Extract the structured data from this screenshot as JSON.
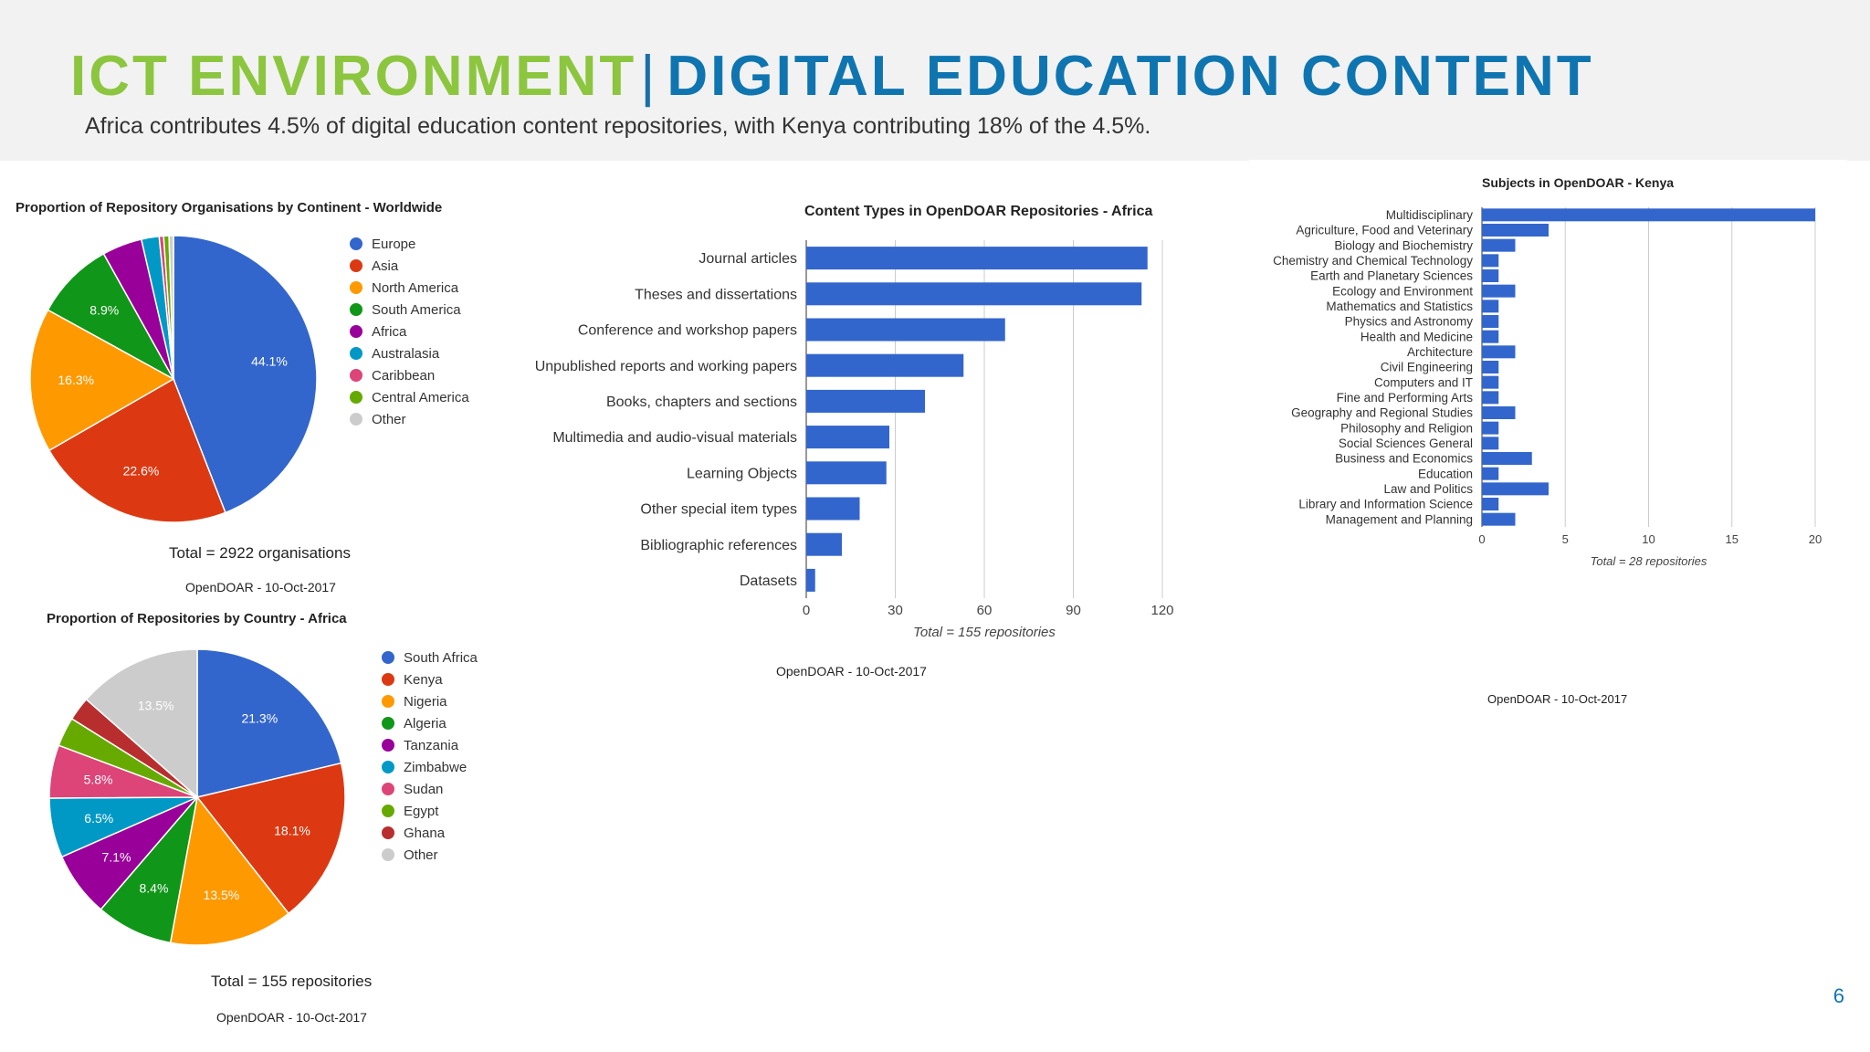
{
  "slide": {
    "title_part1": "ICT ENVIRONMENT",
    "title_sep": "|",
    "title_part2": "DIGITAL EDUCATION CONTENT",
    "subtitle": "Africa contributes 4.5% of digital education content repositories, with Kenya contributing 18% of the 4.5%.",
    "page_number": "6"
  },
  "colors": {
    "title_green": "#8cc63f",
    "title_blue": "#0f75b0",
    "bar": "#3366cc"
  },
  "chart_data": [
    {
      "type": "pie",
      "title": "Proportion of Repository Organisations by Continent - Worldwide",
      "categories": [
        "Europe",
        "Asia",
        "North America",
        "South America",
        "Africa",
        "Australasia",
        "Caribbean",
        "Central America",
        "Other"
      ],
      "values": [
        44.1,
        22.6,
        16.3,
        8.9,
        4.5,
        2.0,
        0.5,
        0.6,
        0.5
      ],
      "slice_labels": [
        "44.1%",
        "22.6%",
        "16.3%",
        "8.9%",
        "",
        "",
        "",
        "",
        ""
      ],
      "colors": [
        "#3366cc",
        "#dc3912",
        "#ff9900",
        "#109618",
        "#990099",
        "#0099c6",
        "#dd4477",
        "#66aa00",
        "#cccccc"
      ],
      "note": "Total = 2922 organisations",
      "source": "OpenDOAR - 10-Oct-2017"
    },
    {
      "type": "pie",
      "title": "Proportion of Repositories by Country - Africa",
      "categories": [
        "South Africa",
        "Kenya",
        "Nigeria",
        "Algeria",
        "Tanzania",
        "Zimbabwe",
        "Sudan",
        "Egypt",
        "Ghana",
        "Other"
      ],
      "values": [
        21.3,
        18.1,
        13.5,
        8.4,
        7.1,
        6.5,
        5.8,
        3.2,
        2.6,
        13.5
      ],
      "slice_labels": [
        "21.3%",
        "18.1%",
        "13.5%",
        "8.4%",
        "7.1%",
        "6.5%",
        "5.8%",
        "",
        "",
        "13.5%"
      ],
      "colors": [
        "#3366cc",
        "#dc3912",
        "#ff9900",
        "#109618",
        "#990099",
        "#0099c6",
        "#dd4477",
        "#66aa00",
        "#b82e2e",
        "#cccccc"
      ],
      "note": "Total = 155 repositories",
      "source": "OpenDOAR - 10-Oct-2017"
    },
    {
      "type": "bar",
      "orientation": "horizontal",
      "title": "Content Types in OpenDOAR Repositories - Africa",
      "categories": [
        "Journal articles",
        "Theses and dissertations",
        "Conference and workshop papers",
        "Unpublished reports and working papers",
        "Books, chapters and sections",
        "Multimedia and audio-visual materials",
        "Learning Objects",
        "Other special item types",
        "Bibliographic references",
        "Datasets"
      ],
      "values": [
        115,
        113,
        67,
        53,
        40,
        28,
        27,
        18,
        12,
        3
      ],
      "xlim": [
        0,
        120
      ],
      "ticks": [
        0,
        30,
        60,
        90,
        120
      ],
      "xlabel": "Total = 155 repositories",
      "grid": true,
      "source": "OpenDOAR - 10-Oct-2017"
    },
    {
      "type": "bar",
      "orientation": "horizontal",
      "title": "Subjects in OpenDOAR - Kenya",
      "categories": [
        "Multidisciplinary",
        "Agriculture, Food and Veterinary",
        "Biology and Biochemistry",
        "Chemistry and Chemical Technology",
        "Earth and Planetary Sciences",
        "Ecology and Environment",
        "Mathematics and Statistics",
        "Physics and Astronomy",
        "Health and Medicine",
        "Architecture",
        "Civil Engineering",
        "Computers and IT",
        "Fine and Performing Arts",
        "Geography and Regional Studies",
        "Philosophy and Religion",
        "Social Sciences General",
        "Business and Economics",
        "Education",
        "Law and Politics",
        "Library and Information Science",
        "Management and Planning"
      ],
      "values": [
        20,
        4,
        2,
        1,
        1,
        2,
        1,
        1,
        1,
        2,
        1,
        1,
        1,
        2,
        1,
        1,
        3,
        1,
        4,
        1,
        2
      ],
      "xlim": [
        0,
        20
      ],
      "ticks": [
        0,
        5,
        10,
        15,
        20
      ],
      "xlabel": "Total = 28 repositories",
      "grid": true,
      "source": "OpenDOAR - 10-Oct-2017"
    }
  ]
}
